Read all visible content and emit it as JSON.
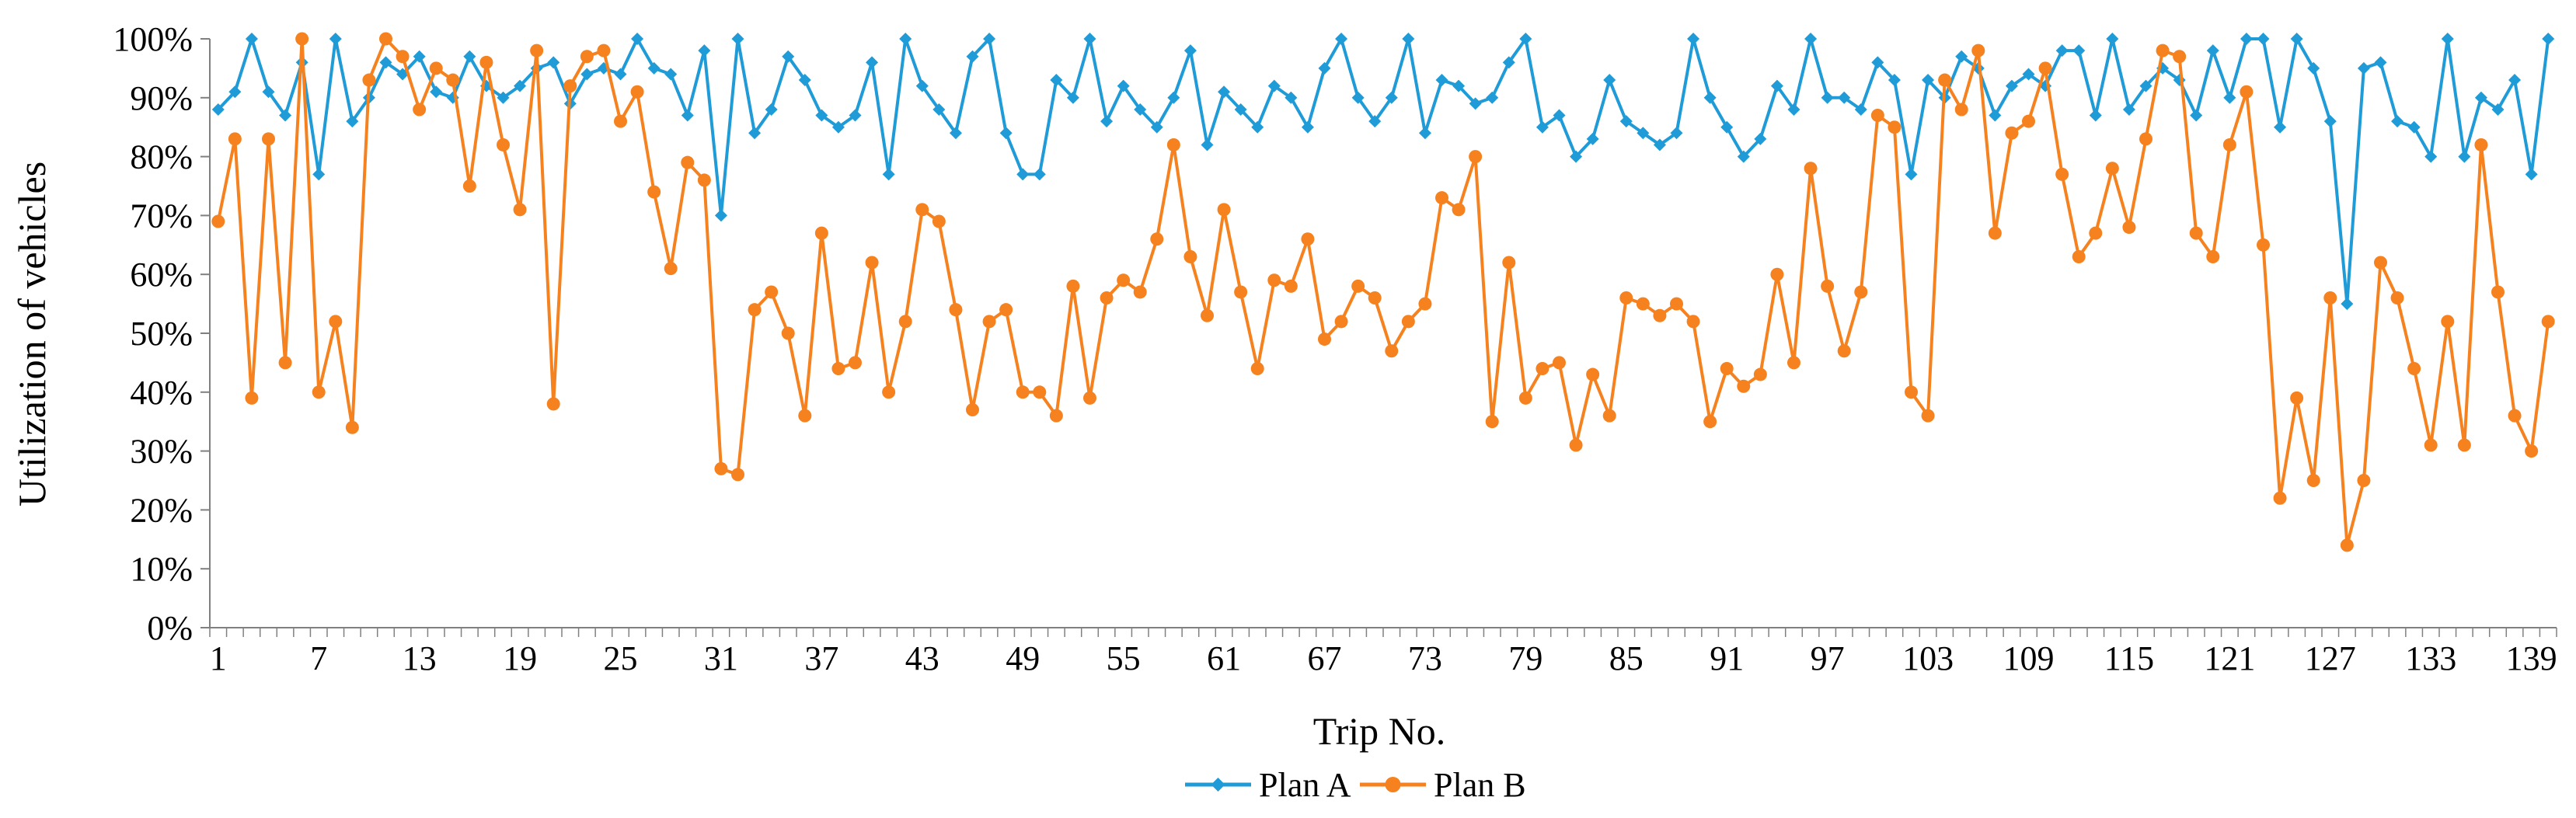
{
  "chart_data": {
    "type": "line",
    "title": "",
    "xlabel": "Trip No.",
    "ylabel": "Utilization of vehicles",
    "ylim": [
      0,
      100
    ],
    "ytick_values": [
      0,
      10,
      20,
      30,
      40,
      50,
      60,
      70,
      80,
      90,
      100
    ],
    "yticks": [
      "0%",
      "10%",
      "20%",
      "30%",
      "40%",
      "50%",
      "60%",
      "70%",
      "80%",
      "90%",
      "100%"
    ],
    "xticks": [
      "1",
      "7",
      "13",
      "19",
      "25",
      "31",
      "37",
      "43",
      "49",
      "55",
      "61",
      "67",
      "73",
      "79",
      "85",
      "91",
      "97",
      "103",
      "109",
      "115",
      "121",
      "127",
      "133",
      "139"
    ],
    "x_count": 140,
    "legend_position": "bottom",
    "series": [
      {
        "name": "Plan A",
        "color": "#1f9bd7",
        "marker": "diamond",
        "values": [
          88,
          91,
          100,
          91,
          87,
          96,
          77,
          100,
          86,
          90,
          96,
          94,
          97,
          91,
          90,
          97,
          92,
          90,
          92,
          95,
          96,
          89,
          94,
          95,
          94,
          100,
          95,
          94,
          87,
          98,
          70,
          100,
          84,
          88,
          97,
          93,
          87,
          85,
          87,
          96,
          77,
          100,
          92,
          88,
          84,
          97,
          100,
          84,
          77,
          77,
          93,
          90,
          100,
          86,
          92,
          88,
          85,
          90,
          98,
          82,
          91,
          88,
          85,
          92,
          90,
          85,
          95,
          100,
          90,
          86,
          90,
          100,
          84,
          93,
          92,
          89,
          90,
          96,
          100,
          85,
          87,
          80,
          83,
          93,
          86,
          84,
          82,
          84,
          100,
          90,
          85,
          80,
          83,
          92,
          88,
          100,
          90,
          90,
          88,
          96,
          93,
          77,
          93,
          90,
          97,
          95,
          87,
          92,
          94,
          92,
          98,
          98,
          87,
          100,
          88,
          92,
          95,
          93,
          87,
          98,
          90,
          100,
          100,
          85,
          100,
          95,
          86,
          55,
          95,
          96,
          86,
          85,
          80,
          100,
          80,
          90,
          88,
          93,
          77,
          100
        ]
      },
      {
        "name": "Plan B",
        "color": "#f5821f",
        "marker": "circle",
        "values": [
          69,
          83,
          39,
          83,
          45,
          100,
          40,
          52,
          34,
          93,
          100,
          97,
          88,
          95,
          93,
          75,
          96,
          82,
          71,
          98,
          38,
          92,
          97,
          98,
          86,
          91,
          74,
          61,
          79,
          76,
          27,
          26,
          54,
          57,
          50,
          36,
          67,
          44,
          45,
          62,
          40,
          52,
          71,
          69,
          54,
          37,
          52,
          54,
          40,
          40,
          36,
          58,
          39,
          56,
          59,
          57,
          66,
          82,
          63,
          53,
          71,
          57,
          44,
          59,
          58,
          66,
          49,
          52,
          58,
          56,
          47,
          52,
          55,
          73,
          71,
          80,
          35,
          62,
          39,
          44,
          45,
          31,
          43,
          36,
          56,
          55,
          53,
          55,
          52,
          35,
          44,
          41,
          43,
          60,
          45,
          78,
          58,
          47,
          57,
          87,
          85,
          40,
          36,
          93,
          88,
          98,
          67,
          84,
          86,
          95,
          77,
          63,
          67,
          78,
          68,
          83,
          98,
          97,
          67,
          63,
          82,
          91,
          65,
          22,
          39,
          25,
          56,
          14,
          25,
          62,
          56,
          44,
          31,
          52,
          31,
          82,
          57,
          36,
          30,
          52
        ]
      }
    ]
  }
}
